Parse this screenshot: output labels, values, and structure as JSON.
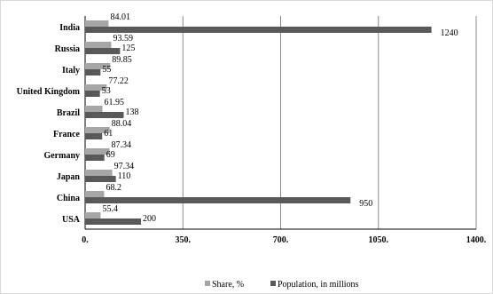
{
  "chart_data": {
    "type": "bar",
    "orientation": "horizontal",
    "categories": [
      "India",
      "Russia",
      "Italy",
      "United Kingdom",
      "Brazil",
      "France",
      "Germany",
      "Japan",
      "China",
      "USA"
    ],
    "series": [
      {
        "name": "Share, %",
        "color": "#a6a6a6",
        "values": [
          84.01,
          93.59,
          89.85,
          77.22,
          61.95,
          88.04,
          87.34,
          97.34,
          68.2,
          55.4
        ]
      },
      {
        "name": "Population, in millions",
        "color": "#595959",
        "values": [
          1240,
          125,
          55,
          53,
          138,
          61,
          69,
          110,
          950,
          200
        ]
      }
    ],
    "x_ticks": [
      "0.",
      "350.",
      "700.",
      "1050.",
      "1400."
    ],
    "xlim": [
      0,
      1400
    ],
    "grid": "vertical",
    "legend_position": "bottom"
  }
}
